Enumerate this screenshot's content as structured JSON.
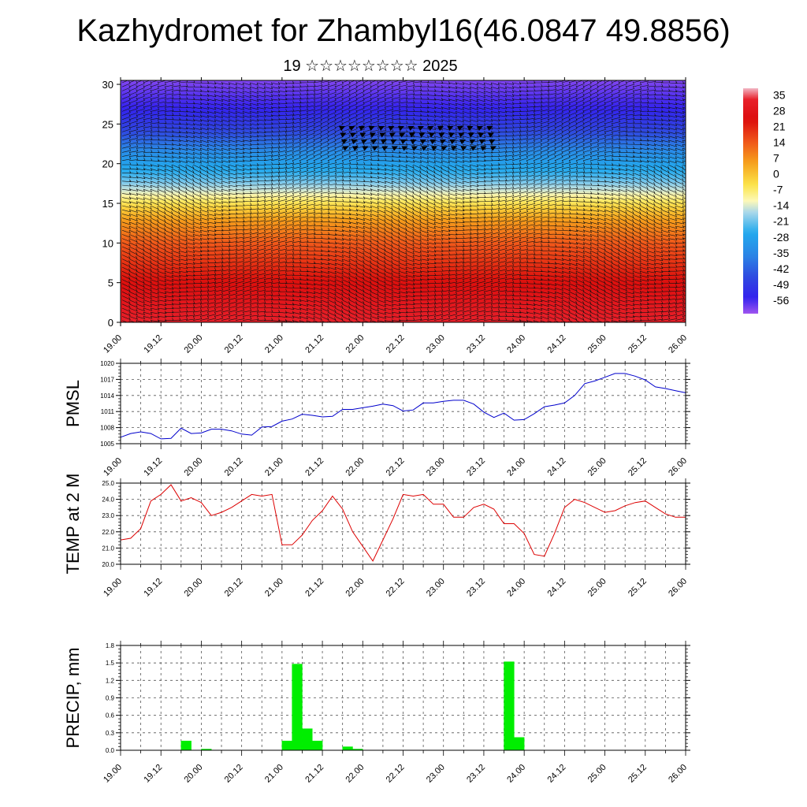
{
  "header": {
    "title": "Kazhydromet for Zhambyl16(46.0847 49.8856)",
    "subtitle": "19 ☆☆☆☆☆☆☆☆ 2025"
  },
  "time_ticks": [
    "19.00",
    "19.12",
    "20.00",
    "20.12",
    "21.00",
    "21.12",
    "22.00",
    "22.12",
    "23.00",
    "23.12",
    "24.00",
    "24.12",
    "25.00",
    "25.12",
    "26.00"
  ],
  "chart_data": [
    {
      "type": "heatmap",
      "id": "temp-cross-section",
      "title": "",
      "yticks": [
        0,
        5,
        10,
        15,
        20,
        25,
        30
      ],
      "ylim": [
        0,
        30.5
      ],
      "xlim": [
        0,
        168
      ],
      "colorbar": {
        "labels": [
          "35",
          "28",
          "21",
          "14",
          "7",
          "0",
          "-7",
          "-14",
          "-21",
          "-28",
          "-35",
          "-42",
          "-49",
          "-56"
        ],
        "range": [
          -62,
          38
        ],
        "stops": [
          {
            "v": 38,
            "c": "#f2b6c4"
          },
          {
            "v": 33,
            "c": "#e8202a"
          },
          {
            "v": 24,
            "c": "#dc0d0d"
          },
          {
            "v": 14,
            "c": "#f0581a"
          },
          {
            "v": 5,
            "c": "#f6a01c"
          },
          {
            "v": -5,
            "c": "#fbe44a"
          },
          {
            "v": -12,
            "c": "#fdf8b8"
          },
          {
            "v": -17,
            "c": "#aad8ea"
          },
          {
            "v": -26,
            "c": "#22aaee"
          },
          {
            "v": -36,
            "c": "#2a86e6"
          },
          {
            "v": -46,
            "c": "#2f48e0"
          },
          {
            "v": -55,
            "c": "#3322ee"
          },
          {
            "v": -62,
            "c": "#a055f0"
          }
        ]
      }
    },
    {
      "type": "line",
      "id": "pmsl",
      "ylabel": "PMSL",
      "ylim": [
        1005,
        1020
      ],
      "yticks": [
        1005,
        1008,
        1011,
        1014,
        1017,
        1020
      ],
      "line_color": "#0000cc",
      "x": [
        0,
        3,
        6,
        9,
        12,
        15,
        18,
        21,
        24,
        27,
        30,
        33,
        36,
        39,
        42,
        45,
        48,
        51,
        54,
        57,
        60,
        63,
        66,
        69,
        72,
        75,
        78,
        81,
        84,
        87,
        90,
        93,
        96,
        99,
        102,
        105,
        108,
        111,
        114,
        117,
        120,
        123,
        126,
        129,
        132,
        135,
        138,
        141,
        144,
        147,
        150,
        153,
        156,
        159,
        162,
        165,
        168
      ],
      "values": [
        1006.2,
        1006.9,
        1007.2,
        1006.9,
        1005.9,
        1006.0,
        1007.9,
        1006.9,
        1007.0,
        1007.7,
        1007.7,
        1007.4,
        1006.8,
        1006.6,
        1008.1,
        1008.2,
        1009.2,
        1009.6,
        1010.5,
        1010.3,
        1010.0,
        1010.1,
        1011.4,
        1011.4,
        1011.7,
        1012.0,
        1012.4,
        1012.1,
        1011.1,
        1011.3,
        1012.6,
        1012.6,
        1012.9,
        1013.1,
        1013.1,
        1012.4,
        1010.9,
        1009.9,
        1010.7,
        1009.4,
        1009.5,
        1010.6,
        1011.9,
        1012.2,
        1012.6,
        1014.0,
        1016.2,
        1016.7,
        1017.4,
        1018.1,
        1018.1,
        1017.6,
        1016.9,
        1015.6,
        1015.3,
        1014.9,
        1014.5
      ]
    },
    {
      "type": "line",
      "id": "temp2m",
      "ylabel": "TEMP at 2 M",
      "ylim": [
        20.0,
        25.0
      ],
      "yticks": [
        "20.0",
        "21.0",
        "22.0",
        "23.0",
        "24.0",
        "25.0"
      ],
      "line_color": "#dd0000",
      "x": [
        0,
        3,
        6,
        9,
        12,
        15,
        18,
        21,
        24,
        27,
        30,
        33,
        36,
        39,
        42,
        45,
        48,
        51,
        54,
        57,
        60,
        63,
        66,
        69,
        72,
        75,
        78,
        81,
        84,
        87,
        90,
        93,
        96,
        99,
        102,
        105,
        108,
        111,
        114,
        117,
        120,
        123,
        126,
        129,
        132,
        135,
        138,
        141,
        144,
        147,
        150,
        153,
        156,
        159,
        162,
        165,
        168
      ],
      "values": [
        21.5,
        21.6,
        22.2,
        23.9,
        24.3,
        24.9,
        23.9,
        24.1,
        23.8,
        23.0,
        23.2,
        23.5,
        23.9,
        24.3,
        24.2,
        24.3,
        21.2,
        21.2,
        21.8,
        22.7,
        23.3,
        24.2,
        23.4,
        22.0,
        21.1,
        20.2,
        21.5,
        22.8,
        24.3,
        24.2,
        24.3,
        23.7,
        23.7,
        22.9,
        22.9,
        23.5,
        23.7,
        23.4,
        22.5,
        22.5,
        21.9,
        20.6,
        20.5,
        21.9,
        23.5,
        24.0,
        23.8,
        23.5,
        23.2,
        23.3,
        23.6,
        23.8,
        23.9,
        23.5,
        23.1,
        22.9,
        22.9
      ]
    },
    {
      "type": "bar",
      "id": "precip",
      "ylabel": "PRECIP, mm",
      "ylim": [
        0,
        1.8
      ],
      "yticks": [
        "0.0",
        "0.3",
        "0.6",
        "0.9",
        "1.2",
        "1.5",
        "1.8"
      ],
      "bar_color": "#00ee00",
      "bar_hours": 3,
      "x": [
        18,
        24,
        48,
        51,
        54,
        57,
        66,
        69,
        114,
        117
      ],
      "values": [
        0.16,
        0.02,
        0.16,
        1.48,
        0.37,
        0.16,
        0.06,
        0.02,
        1.52,
        0.22
      ]
    }
  ]
}
